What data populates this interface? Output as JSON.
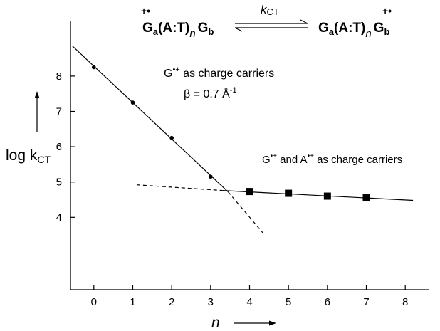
{
  "chart_data": {
    "type": "line",
    "title": "",
    "xlabel": "n",
    "ylabel_main": "log k",
    "ylabel_sub": "CT",
    "xlim": [
      -0.6,
      8.6
    ],
    "ylim": [
      1.95,
      9.55
    ],
    "x_ticks": [
      0,
      1,
      2,
      3,
      4,
      5,
      6,
      7,
      8
    ],
    "y_ticks": [
      4,
      5,
      6,
      7,
      8
    ],
    "grid": false,
    "series": [
      {
        "name": "G•+ as charge carriers",
        "marker": "circle",
        "x": [
          0,
          1,
          2,
          3
        ],
        "y": [
          8.25,
          7.25,
          6.25,
          5.15
        ]
      },
      {
        "name": "G•+ and A•+ as charge carriers",
        "marker": "square",
        "x": [
          4,
          5,
          6,
          7
        ],
        "y": [
          4.73,
          4.68,
          4.6,
          4.55
        ]
      }
    ],
    "fit_lines": [
      {
        "style": "solid",
        "x": [
          -0.55,
          3.45
        ],
        "y": [
          8.85,
          4.72
        ]
      },
      {
        "style": "dashed",
        "x": [
          3.45,
          4.35
        ],
        "y": [
          4.72,
          3.55
        ]
      },
      {
        "style": "dashed",
        "x": [
          1.1,
          3.3
        ],
        "y": [
          4.92,
          4.76
        ]
      },
      {
        "style": "solid",
        "x": [
          3.3,
          8.2
        ],
        "y": [
          4.76,
          4.48
        ]
      }
    ],
    "annotations": {
      "carrier_g": "G",
      "carrier_g_sup": "•+",
      "carrier_g_rest": " as charge carriers",
      "beta_text": "β = 0.7 Å",
      "beta_sup": "-1",
      "carrier_ga_g": "G",
      "carrier_ga_g_sup": "•+",
      "carrier_ga_mid": " and A",
      "carrier_ga_a_sup": "•+",
      "carrier_ga_rest": " as charge carriers"
    },
    "reaction": {
      "left_g": "G",
      "left_g_sub": "a",
      "left_mid": "(A:T)",
      "left_n": "n",
      "left_end": "G",
      "left_end_sub": "b",
      "radical_mark": "+•",
      "k_main": "k",
      "k_sub": "CT",
      "right_g": "G",
      "right_g_sub": "a",
      "right_mid": "(A:T)",
      "right_n": "n",
      "right_end": "G",
      "right_end_sub": "b"
    }
  }
}
